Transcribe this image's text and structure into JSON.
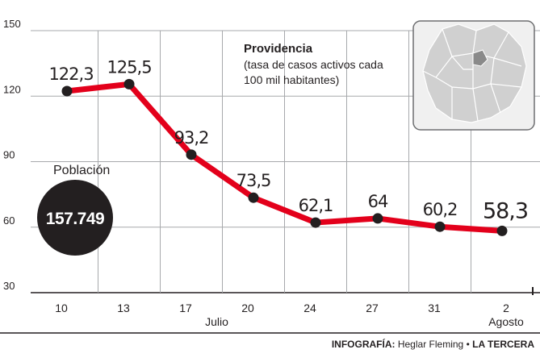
{
  "chart_data": {
    "type": "line",
    "title": "Providencia",
    "subtitle_lines": [
      "(tasa de casos activos cada",
      "100 mil habitantes)"
    ],
    "categories": [
      "10",
      "13",
      "17",
      "20",
      "24",
      "27",
      "31",
      "2"
    ],
    "month_labels": [
      {
        "label": "Julio",
        "category_index": 2.5
      },
      {
        "label": "Agosto",
        "category_index": 7
      }
    ],
    "values": [
      122.3,
      125.5,
      93.2,
      73.5,
      62.1,
      64,
      60.2,
      58.3
    ],
    "value_labels": [
      "122,3",
      "125,5",
      "93,2",
      "73,5",
      "62,1",
      "64",
      "60,2",
      "58,3"
    ],
    "yticks": [
      150,
      120,
      90,
      60,
      30
    ],
    "ylim": [
      30,
      150
    ],
    "xlabel": "",
    "ylabel": "",
    "grid": true,
    "line_color": "#e3001b",
    "marker_color": "#231f20"
  },
  "population": {
    "label": "Población",
    "value": "157.749"
  },
  "map": {
    "icon": "santiago-communes-map",
    "background": "#f0f0f0",
    "region_color": "#d0d0d0",
    "highlight_color": "#8a8a8a"
  },
  "credit": {
    "prefix": "INFOGRAFÍA:",
    "author": "Heglar Fleming",
    "separator": "•",
    "outlet": "LA TERCERA"
  }
}
